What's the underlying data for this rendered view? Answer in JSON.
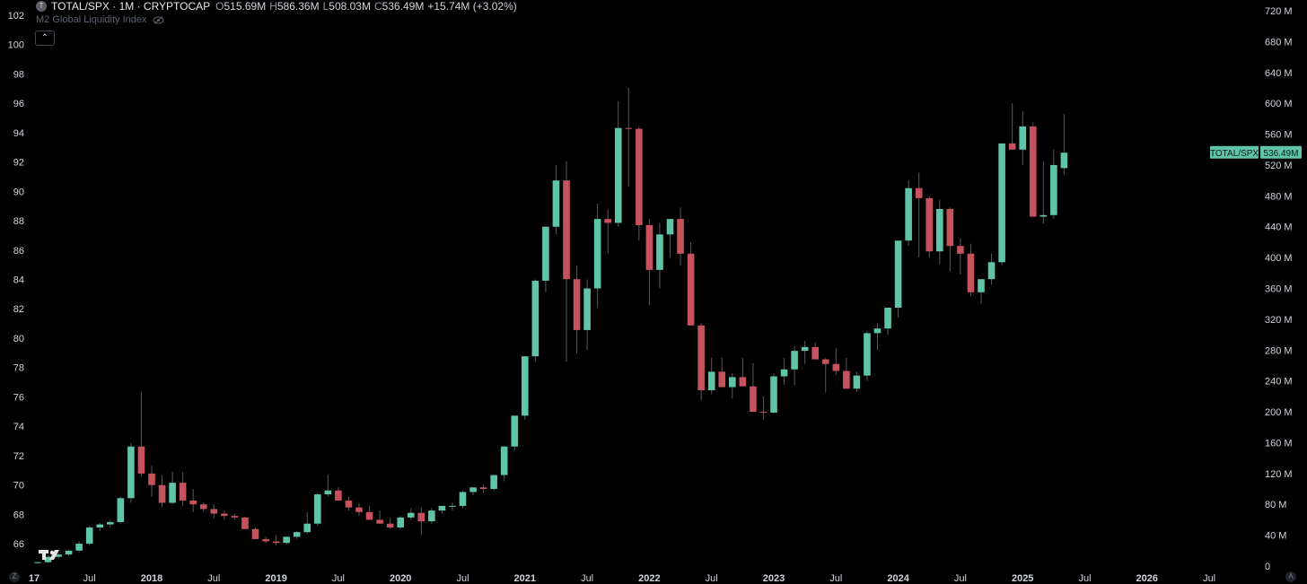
{
  "legend": {
    "symbol_badge": "T",
    "title": "TOTAL/SPX · 1M · CRYPTOCAP",
    "open_label": "O",
    "open": "515.69M",
    "high_label": "H",
    "high": "586.36M",
    "low_label": "L",
    "low": "508.03M",
    "close_label": "C",
    "close": "536.49M",
    "change": "+15.74M (+3.02%)"
  },
  "indicator": {
    "name": "M2 Global Liquidity Index",
    "icon": "eye-crossed-icon"
  },
  "collapse_button": {
    "icon": "chevron-up-icon",
    "glyph": "⌃"
  },
  "price_tag": {
    "symbol": "TOTAL/SPX",
    "value": "536.49M"
  },
  "corner_left": "Z",
  "corner_right": "A",
  "colors": {
    "up": "#5fc4a8",
    "down": "#c6525e",
    "wick": "#5a5a5a",
    "background": "#000000",
    "axis_text": "#d1d4dc"
  },
  "chart_data": {
    "type": "candlestick",
    "interval": "1M",
    "left_axis": {
      "ticks": [
        66,
        68,
        70,
        72,
        74,
        76,
        78,
        80,
        82,
        84,
        86,
        88,
        90,
        92,
        94,
        96,
        98,
        100,
        102
      ]
    },
    "right_axis": {
      "unit": "M",
      "ticks": [
        0,
        40,
        80,
        120,
        160,
        200,
        240,
        280,
        320,
        360,
        400,
        440,
        480,
        520,
        560,
        600,
        640,
        680,
        720
      ],
      "tick_labels": [
        "0",
        "40 M",
        "80 M",
        "120 M",
        "160 M",
        "200 M",
        "240 M",
        "280 M",
        "320 M",
        "360 M",
        "400 M",
        "440 M",
        "480 M",
        "520 M",
        "560 M",
        "600 M",
        "640 M",
        "680 M",
        "720 M"
      ]
    },
    "x_axis": {
      "labels": [
        {
          "label": "17",
          "month": "2017-01",
          "bold": true
        },
        {
          "label": "Jul",
          "month": "2017-07",
          "bold": false
        },
        {
          "label": "2018",
          "month": "2018-01",
          "bold": true
        },
        {
          "label": "Jul",
          "month": "2018-07",
          "bold": false
        },
        {
          "label": "2019",
          "month": "2019-01",
          "bold": true
        },
        {
          "label": "Jul",
          "month": "2019-07",
          "bold": false
        },
        {
          "label": "2020",
          "month": "2020-01",
          "bold": true
        },
        {
          "label": "Jul",
          "month": "2020-07",
          "bold": false
        },
        {
          "label": "2021",
          "month": "2021-01",
          "bold": true
        },
        {
          "label": "Jul",
          "month": "2021-07",
          "bold": false
        },
        {
          "label": "2022",
          "month": "2022-01",
          "bold": true
        },
        {
          "label": "Jul",
          "month": "2022-07",
          "bold": false
        },
        {
          "label": "2023",
          "month": "2023-01",
          "bold": true
        },
        {
          "label": "Jul",
          "month": "2023-07",
          "bold": false
        },
        {
          "label": "2024",
          "month": "2024-01",
          "bold": true
        },
        {
          "label": "Jul",
          "month": "2024-07",
          "bold": false
        },
        {
          "label": "2025",
          "month": "2025-01",
          "bold": true
        },
        {
          "label": "Jul",
          "month": "2025-07",
          "bold": false
        },
        {
          "label": "2026",
          "month": "2026-01",
          "bold": true
        },
        {
          "label": "Jul",
          "month": "2026-07",
          "bold": false
        }
      ]
    },
    "series": [
      {
        "name": "TOTAL/SPX",
        "columns": [
          "month",
          "open",
          "high",
          "low",
          "close"
        ],
        "candles": [
          [
            "2017-02",
            4,
            6,
            3,
            5
          ],
          [
            "2017-03",
            5,
            14,
            4,
            12
          ],
          [
            "2017-04",
            12,
            17,
            10,
            15
          ],
          [
            "2017-05",
            15,
            21,
            13,
            20
          ],
          [
            "2017-06",
            20,
            32,
            18,
            29
          ],
          [
            "2017-07",
            29,
            52,
            27,
            50
          ],
          [
            "2017-08",
            50,
            56,
            45,
            54
          ],
          [
            "2017-09",
            54,
            60,
            50,
            57
          ],
          [
            "2017-10",
            57,
            90,
            55,
            88
          ],
          [
            "2017-11",
            88,
            160,
            82,
            155
          ],
          [
            "2017-12",
            155,
            225,
            116,
            120
          ],
          [
            "2017-13",
            120,
            130,
            90,
            105
          ],
          [
            "2017-14",
            105,
            118,
            77,
            82
          ],
          [
            "2017-15",
            82,
            122,
            80,
            108
          ],
          [
            "2017-16",
            108,
            122,
            78,
            85
          ],
          [
            "2017-17",
            85,
            100,
            70,
            80
          ],
          [
            "2017-18",
            80,
            83,
            70,
            74
          ],
          [
            "2017-19",
            74,
            80,
            62,
            68
          ],
          [
            "2017-20",
            68,
            72,
            60,
            65
          ],
          [
            "2017-21",
            65,
            68,
            60,
            63
          ]
        ]
      }
    ]
  }
}
